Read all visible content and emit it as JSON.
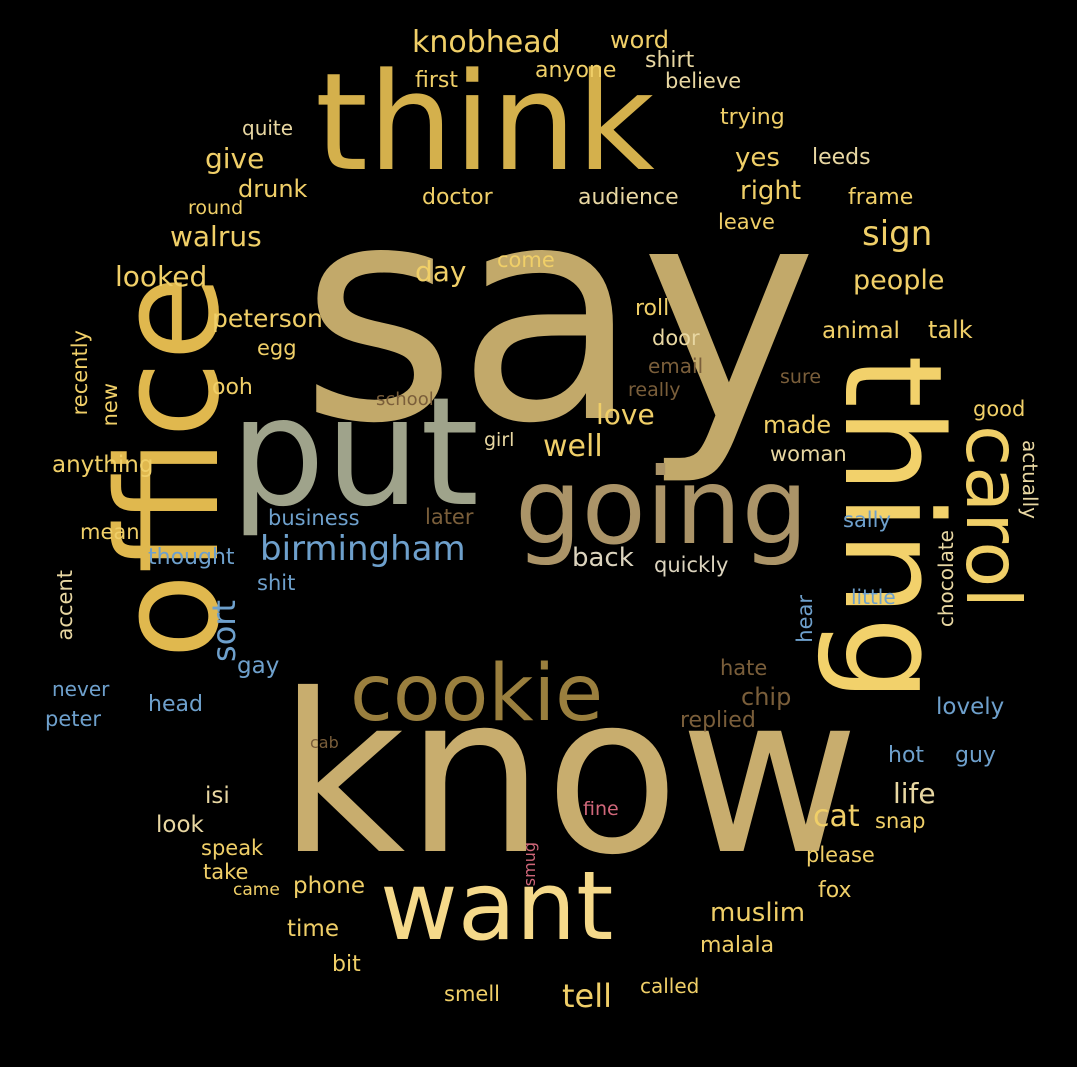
{
  "background": "#000000",
  "palette": {
    "gold": "#d4b04c",
    "khaki": "#c2a96a",
    "sage": "#9fa38b",
    "olive": "#9a7f3e",
    "tan": "#ab9468",
    "pale_yellow": "#f5d98a",
    "bright_yellow": "#f2d16b",
    "blue": "#6ea0cc",
    "light_blue": "#7ab3de",
    "brown": "#7a5e3a",
    "pink": "#d0677a",
    "gray": "#dcd4be"
  },
  "words": [
    {
      "text": "say",
      "color": "#c2a96a"
    },
    {
      "text": "know",
      "color": "#c8ad6e"
    },
    {
      "text": "think",
      "color": "#d4b04c"
    },
    {
      "text": "put",
      "color": "#9fa38b"
    },
    {
      "text": "office",
      "color": "#e0b84e"
    },
    {
      "text": "thing",
      "color": "#f2d16b"
    },
    {
      "text": "going",
      "color": "#ab9468"
    },
    {
      "text": "cookie",
      "color": "#9a7f3e"
    },
    {
      "text": "want",
      "color": "#f5d98a"
    },
    {
      "text": "carol",
      "color": "#f0cf68"
    },
    {
      "text": "birmingham",
      "color": "#6ea0cc"
    },
    {
      "text": "knobhead",
      "color": "#f0cf68"
    },
    {
      "text": "word",
      "color": "#f0cf68"
    },
    {
      "text": "shirt",
      "color": "#e8d7a2"
    },
    {
      "text": "first",
      "color": "#f0cf68"
    },
    {
      "text": "anyone",
      "color": "#f0cf68"
    },
    {
      "text": "believe",
      "color": "#e8d7a2"
    },
    {
      "text": "quite",
      "color": "#e8d7a2"
    },
    {
      "text": "trying",
      "color": "#f0cf68"
    },
    {
      "text": "give",
      "color": "#f0cf68"
    },
    {
      "text": "yes",
      "color": "#f0cf68"
    },
    {
      "text": "leeds",
      "color": "#e8d7a2"
    },
    {
      "text": "drunk",
      "color": "#f0cf68"
    },
    {
      "text": "right",
      "color": "#f0cf68"
    },
    {
      "text": "doctor",
      "color": "#f0cf68"
    },
    {
      "text": "audience",
      "color": "#e8d7a2"
    },
    {
      "text": "frame",
      "color": "#f0cf68"
    },
    {
      "text": "round",
      "color": "#f0cf68"
    },
    {
      "text": "leave",
      "color": "#f0cf68"
    },
    {
      "text": "walrus",
      "color": "#f0cf68"
    },
    {
      "text": "sign",
      "color": "#f0cf68"
    },
    {
      "text": "looked",
      "color": "#f0cf68"
    },
    {
      "text": "day",
      "color": "#f0cf68"
    },
    {
      "text": "come",
      "color": "#f0cf68"
    },
    {
      "text": "people",
      "color": "#f0cf68"
    },
    {
      "text": "peterson",
      "color": "#f0cf68"
    },
    {
      "text": "roll",
      "color": "#f0cf68"
    },
    {
      "text": "egg",
      "color": "#f0cf68"
    },
    {
      "text": "door",
      "color": "#e8d7a2"
    },
    {
      "text": "animal",
      "color": "#f0cf68"
    },
    {
      "text": "talk",
      "color": "#f0cf68"
    },
    {
      "text": "recently",
      "color": "#f0cf68"
    },
    {
      "text": "new",
      "color": "#f0cf68"
    },
    {
      "text": "email",
      "color": "#7a5e3a"
    },
    {
      "text": "sure",
      "color": "#7a5e3a"
    },
    {
      "text": "ooh",
      "color": "#f0cf68"
    },
    {
      "text": "really",
      "color": "#7a5e3a"
    },
    {
      "text": "school",
      "color": "#7a5e3a"
    },
    {
      "text": "love",
      "color": "#f0cf68"
    },
    {
      "text": "good",
      "color": "#f0cf68"
    },
    {
      "text": "made",
      "color": "#f0cf68"
    },
    {
      "text": "girl",
      "color": "#e8d7a2"
    },
    {
      "text": "well",
      "color": "#f0cf68"
    },
    {
      "text": "anything",
      "color": "#f0cf68"
    },
    {
      "text": "woman",
      "color": "#e8d7a2"
    },
    {
      "text": "actually",
      "color": "#e8d7a2"
    },
    {
      "text": "business",
      "color": "#6ea0cc"
    },
    {
      "text": "later",
      "color": "#7a5e3a"
    },
    {
      "text": "sally",
      "color": "#6ea0cc"
    },
    {
      "text": "mean",
      "color": "#f0cf68"
    },
    {
      "text": "thought",
      "color": "#6ea0cc"
    },
    {
      "text": "back",
      "color": "#dcd4be"
    },
    {
      "text": "quickly",
      "color": "#dcd4be"
    },
    {
      "text": "chocolate",
      "color": "#e8d7a2"
    },
    {
      "text": "shit",
      "color": "#6ea0cc"
    },
    {
      "text": "sort",
      "color": "#6ea0cc"
    },
    {
      "text": "little",
      "color": "#6ea0cc"
    },
    {
      "text": "accent",
      "color": "#e8d7a2"
    },
    {
      "text": "hear",
      "color": "#6ea0cc"
    },
    {
      "text": "gay",
      "color": "#6ea0cc"
    },
    {
      "text": "hate",
      "color": "#7a5e3a"
    },
    {
      "text": "chip",
      "color": "#7a5e3a"
    },
    {
      "text": "never",
      "color": "#6ea0cc"
    },
    {
      "text": "head",
      "color": "#6ea0cc"
    },
    {
      "text": "replied",
      "color": "#7a5e3a"
    },
    {
      "text": "lovely",
      "color": "#6ea0cc"
    },
    {
      "text": "peter",
      "color": "#6ea0cc"
    },
    {
      "text": "cab",
      "color": "#7a5e3a"
    },
    {
      "text": "hot",
      "color": "#6ea0cc"
    },
    {
      "text": "guy",
      "color": "#6ea0cc"
    },
    {
      "text": "isi",
      "color": "#e8d7a2"
    },
    {
      "text": "life",
      "color": "#e8d7a2"
    },
    {
      "text": "fine",
      "color": "#d0677a"
    },
    {
      "text": "look",
      "color": "#e8d7a2"
    },
    {
      "text": "cat",
      "color": "#f0cf68"
    },
    {
      "text": "snap",
      "color": "#f0cf68"
    },
    {
      "text": "speak",
      "color": "#f0cf68"
    },
    {
      "text": "please",
      "color": "#f0cf68"
    },
    {
      "text": "take",
      "color": "#f0cf68"
    },
    {
      "text": "smug",
      "color": "#d0677a"
    },
    {
      "text": "came",
      "color": "#f0cf68"
    },
    {
      "text": "phone",
      "color": "#f0cf68"
    },
    {
      "text": "fox",
      "color": "#f0cf68"
    },
    {
      "text": "muslim",
      "color": "#f0cf68"
    },
    {
      "text": "time",
      "color": "#f0cf68"
    },
    {
      "text": "malala",
      "color": "#f0cf68"
    },
    {
      "text": "bit",
      "color": "#f0cf68"
    },
    {
      "text": "tell",
      "color": "#f0cf68"
    },
    {
      "text": "smell",
      "color": "#f0cf68"
    },
    {
      "text": "called",
      "color": "#f0cf68"
    }
  ]
}
